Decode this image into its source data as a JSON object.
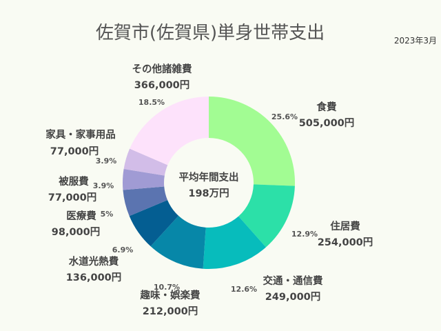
{
  "chart_data": {
    "type": "pie",
    "title": "佐賀市(佐賀県)単身世帯支出",
    "date": "2023年3月",
    "center_label": "平均年間支出",
    "center_value": "198万円",
    "slices": [
      {
        "label": "食費",
        "amount": "505,000円",
        "value": 505000,
        "percent": "25.6%",
        "color": "#a2fc93"
      },
      {
        "label": "住居費",
        "amount": "254,000円",
        "value": 254000,
        "percent": "12.9%",
        "color": "#2ce0a8"
      },
      {
        "label": "交通・通信費",
        "amount": "249,000円",
        "value": 249000,
        "percent": "12.6%",
        "color": "#07bcbc"
      },
      {
        "label": "趣味・娯楽費",
        "amount": "212,000円",
        "value": 212000,
        "percent": "10.7%",
        "color": "#0787a8"
      },
      {
        "label": "水道光熱費",
        "amount": "136,000円",
        "value": 136000,
        "percent": "6.9%",
        "color": "#045e92"
      },
      {
        "label": "医療費",
        "amount": "98,000円",
        "value": 98000,
        "percent": "5%",
        "color": "#5b74b0"
      },
      {
        "label": "被服費",
        "amount": "77,000円",
        "value": 77000,
        "percent": "3.9%",
        "color": "#a09bd4"
      },
      {
        "label": "家具・家事用品",
        "amount": "77,000円",
        "value": 77000,
        "percent": "3.9%",
        "color": "#d2bde8"
      },
      {
        "label": "その他諸雑費",
        "amount": "366,000円",
        "value": 366000,
        "percent": "18.5%",
        "color": "#fde2fb"
      }
    ]
  }
}
